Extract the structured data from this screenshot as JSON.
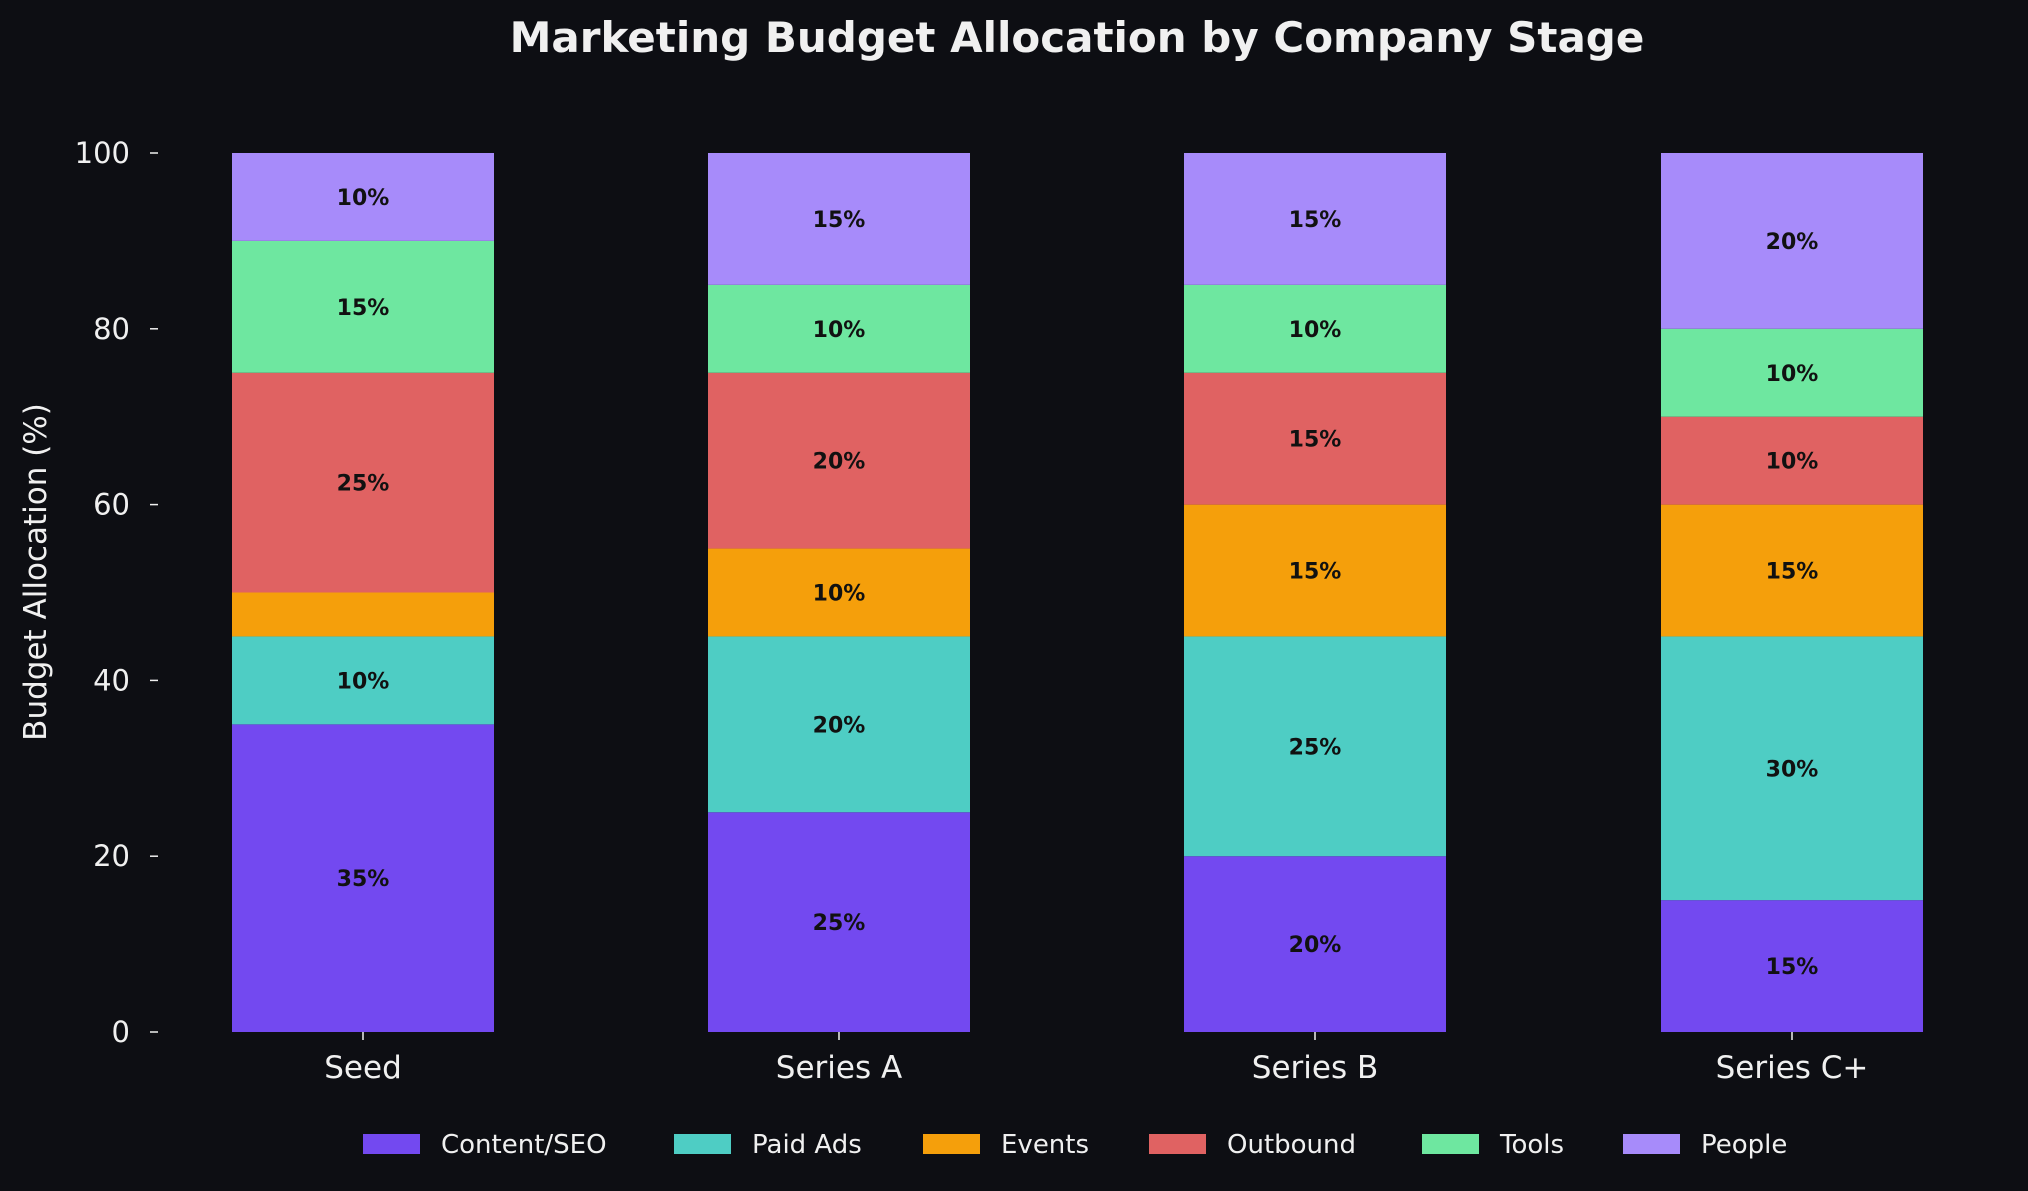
{
  "chart_data": {
    "type": "bar",
    "stacked": true,
    "title": "Marketing Budget Allocation by Company Stage",
    "xlabel": "",
    "ylabel": "Budget Allocation (%)",
    "ylim": [
      0,
      100
    ],
    "yticks": [
      0,
      20,
      40,
      60,
      80,
      100
    ],
    "categories": [
      "Seed",
      "Series A",
      "Series B",
      "Series C+"
    ],
    "series": [
      {
        "name": "Content/SEO",
        "color": "#7349f0",
        "values": [
          35,
          25,
          20,
          15
        ]
      },
      {
        "name": "Paid Ads",
        "color": "#4ecdc4",
        "values": [
          10,
          20,
          25,
          30
        ]
      },
      {
        "name": "Events",
        "color": "#f59f0b",
        "values": [
          5,
          10,
          15,
          15
        ]
      },
      {
        "name": "Outbound",
        "color": "#e06262",
        "values": [
          25,
          20,
          15,
          10
        ]
      },
      {
        "name": "Tools",
        "color": "#6ee7a0",
        "values": [
          15,
          10,
          10,
          10
        ]
      },
      {
        "name": "People",
        "color": "#a78bfa",
        "values": [
          10,
          15,
          15,
          20
        ]
      }
    ],
    "label_min_value": 10,
    "label_format": "{v}%",
    "grid": false,
    "legend_placement": "bottom-center",
    "background": "#0d0e13",
    "text_color": "#f0f0f0"
  }
}
